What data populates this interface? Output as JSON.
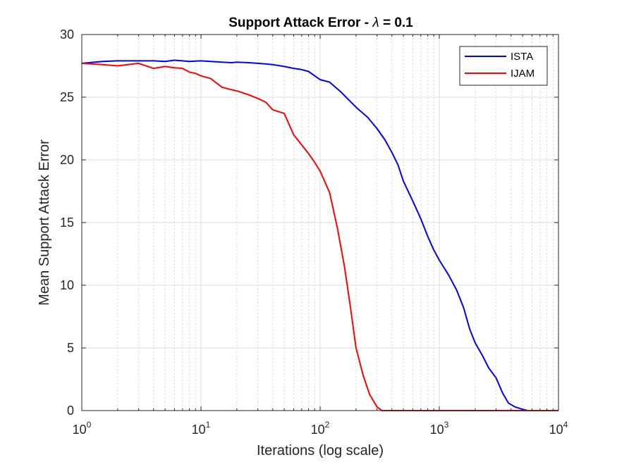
{
  "chart_data": {
    "type": "line",
    "title_prefix": "Support Attack Error - ",
    "title_symbol": "λ",
    "title_suffix": " = 0.1",
    "xlabel": "Iterations (log scale)",
    "ylabel": "Mean Support Attack Error",
    "xscale": "log",
    "xlim": [
      1,
      10000
    ],
    "ylim": [
      0,
      30
    ],
    "grid": true,
    "legend_position": "top-right",
    "x_ticks": [
      {
        "base": "10",
        "exp": "0",
        "value": 1
      },
      {
        "base": "10",
        "exp": "1",
        "value": 10
      },
      {
        "base": "10",
        "exp": "2",
        "value": 100
      },
      {
        "base": "10",
        "exp": "3",
        "value": 1000
      },
      {
        "base": "10",
        "exp": "4",
        "value": 10000
      }
    ],
    "y_ticks": [
      "0",
      "5",
      "10",
      "15",
      "20",
      "25",
      "30"
    ],
    "series": [
      {
        "name": "ISTA",
        "color": "#0000ff",
        "points": [
          [
            1,
            27.7
          ],
          [
            1.5,
            27.85
          ],
          [
            2,
            27.9
          ],
          [
            3,
            27.9
          ],
          [
            4,
            27.9
          ],
          [
            5,
            27.85
          ],
          [
            6,
            27.95
          ],
          [
            8,
            27.85
          ],
          [
            10,
            27.9
          ],
          [
            12,
            27.85
          ],
          [
            15,
            27.8
          ],
          [
            18,
            27.75
          ],
          [
            20,
            27.8
          ],
          [
            25,
            27.75
          ],
          [
            30,
            27.7
          ],
          [
            40,
            27.6
          ],
          [
            50,
            27.45
          ],
          [
            60,
            27.3
          ],
          [
            70,
            27.2
          ],
          [
            80,
            27.05
          ],
          [
            90,
            26.7
          ],
          [
            100,
            26.4
          ],
          [
            120,
            26.2
          ],
          [
            150,
            25.4
          ],
          [
            200,
            24.2
          ],
          [
            250,
            23.4
          ],
          [
            300,
            22.5
          ],
          [
            350,
            21.6
          ],
          [
            400,
            20.6
          ],
          [
            450,
            19.6
          ],
          [
            500,
            18.3
          ],
          [
            600,
            16.7
          ],
          [
            700,
            15.3
          ],
          [
            800,
            13.9
          ],
          [
            900,
            12.8
          ],
          [
            1000,
            12.0
          ],
          [
            1200,
            10.8
          ],
          [
            1400,
            9.6
          ],
          [
            1600,
            8.2
          ],
          [
            1800,
            6.5
          ],
          [
            2000,
            5.4
          ],
          [
            2300,
            4.4
          ],
          [
            2600,
            3.4
          ],
          [
            3000,
            2.6
          ],
          [
            3400,
            1.4
          ],
          [
            3800,
            0.6
          ],
          [
            4300,
            0.3
          ],
          [
            5000,
            0.1
          ],
          [
            5500,
            0
          ],
          [
            10000,
            0
          ]
        ]
      },
      {
        "name": "IJAM",
        "color": "#ff0000",
        "points": [
          [
            1,
            27.7
          ],
          [
            1.5,
            27.6
          ],
          [
            2,
            27.5
          ],
          [
            3,
            27.7
          ],
          [
            4,
            27.3
          ],
          [
            5,
            27.45
          ],
          [
            6,
            27.35
          ],
          [
            7,
            27.3
          ],
          [
            8,
            27.0
          ],
          [
            9,
            26.9
          ],
          [
            10,
            26.7
          ],
          [
            12,
            26.5
          ],
          [
            15,
            25.8
          ],
          [
            18,
            25.6
          ],
          [
            20,
            25.5
          ],
          [
            25,
            25.2
          ],
          [
            30,
            24.9
          ],
          [
            35,
            24.6
          ],
          [
            40,
            24.0
          ],
          [
            50,
            23.7
          ],
          [
            60,
            22.0
          ],
          [
            70,
            21.2
          ],
          [
            80,
            20.5
          ],
          [
            90,
            19.8
          ],
          [
            100,
            19.1
          ],
          [
            120,
            17.4
          ],
          [
            140,
            14.5
          ],
          [
            160,
            11.5
          ],
          [
            180,
            8.2
          ],
          [
            200,
            5.0
          ],
          [
            230,
            2.8
          ],
          [
            260,
            1.3
          ],
          [
            300,
            0.3
          ],
          [
            330,
            0
          ],
          [
            10000,
            0
          ]
        ]
      }
    ]
  }
}
